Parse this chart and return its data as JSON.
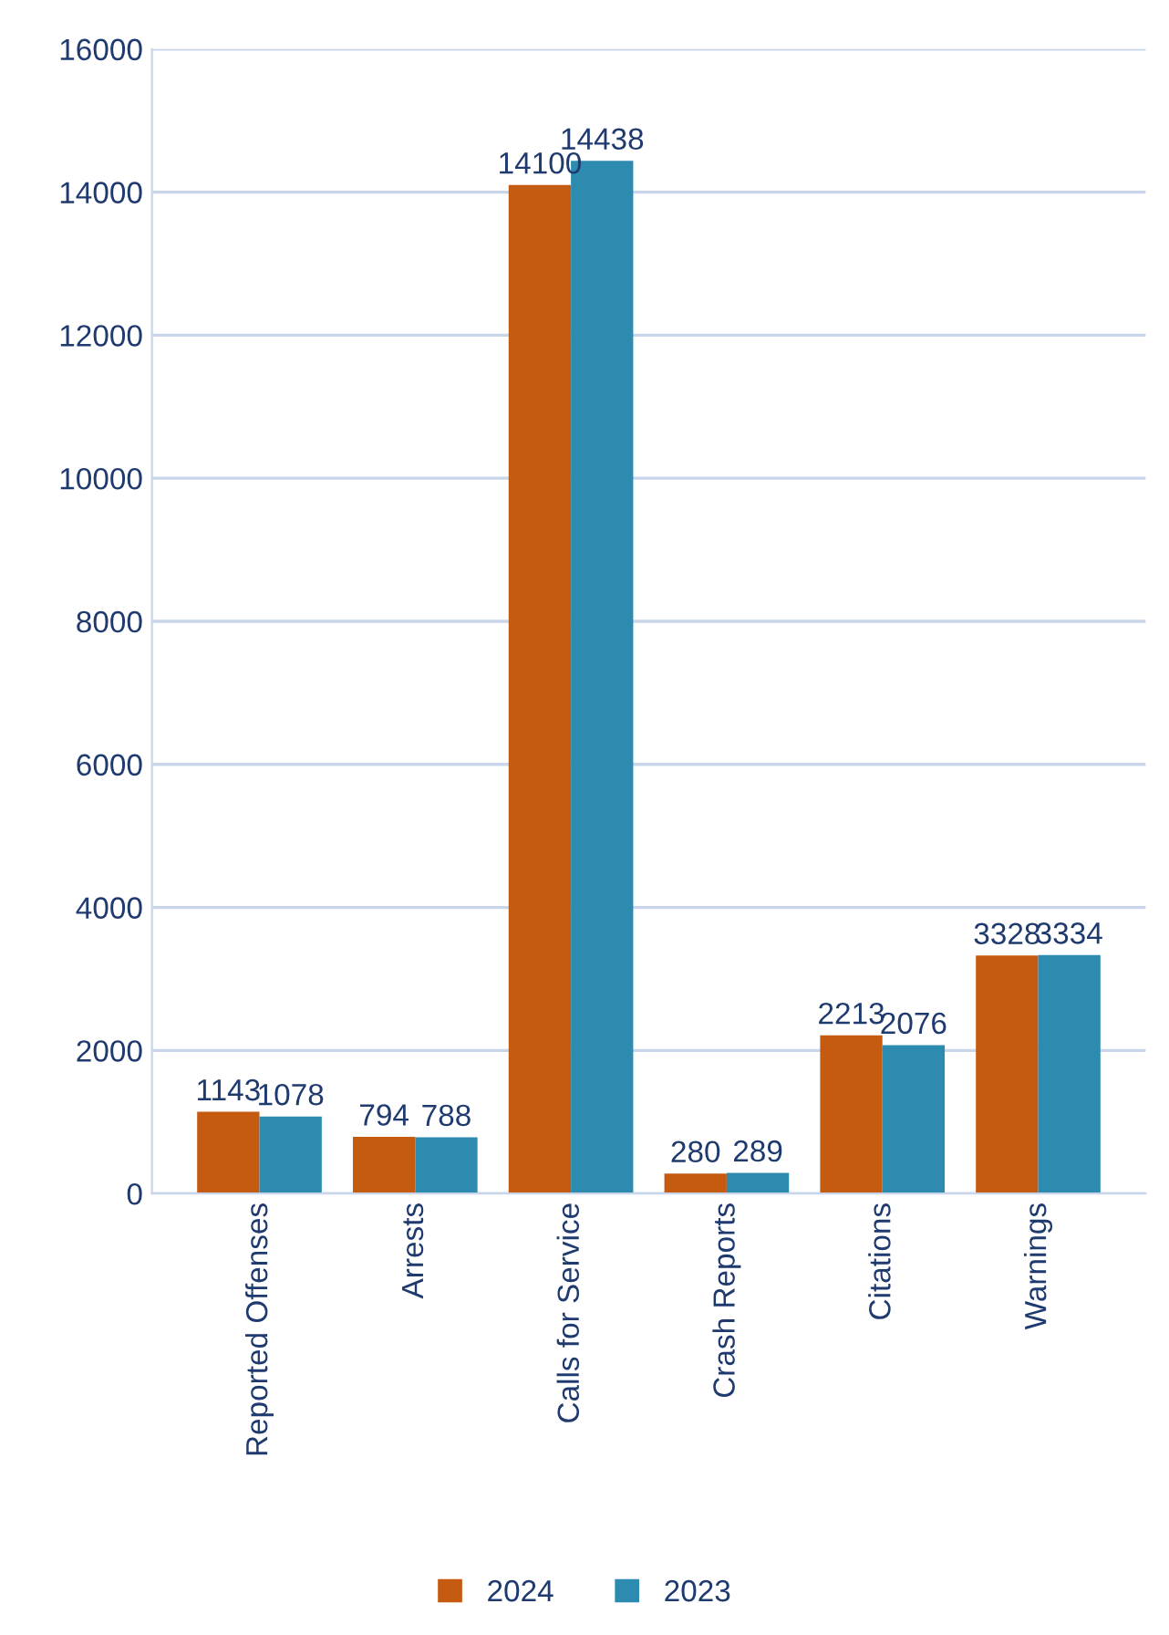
{
  "chart_data": {
    "type": "bar",
    "categories": [
      "Reported Offenses",
      "Arrests",
      "Calls for Service",
      "Crash Reports",
      "Citations",
      "Warnings"
    ],
    "series": [
      {
        "name": "2024",
        "color": "#c55a11",
        "values": [
          1143,
          794,
          14100,
          280,
          2213,
          3328
        ]
      },
      {
        "name": "2023",
        "color": "#2e8bb0",
        "values": [
          1078,
          788,
          14438,
          289,
          2076,
          3334
        ]
      }
    ],
    "ylim": [
      0,
      16000
    ],
    "yticks": [
      0,
      2000,
      4000,
      6000,
      8000,
      10000,
      12000,
      14000,
      16000
    ],
    "grid": "y",
    "legend": "bottom",
    "data_labels": true
  }
}
